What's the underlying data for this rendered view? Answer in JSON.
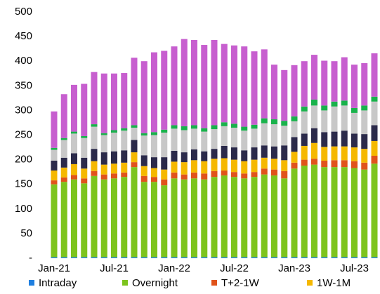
{
  "chart_data": {
    "type": "stacked-bar",
    "categories": [
      "Jan-21",
      null,
      null,
      null,
      null,
      null,
      "Jul-21",
      null,
      null,
      null,
      null,
      null,
      "Jan-22",
      null,
      null,
      null,
      null,
      null,
      "Jul-22",
      null,
      null,
      null,
      null,
      null,
      "Jan-23",
      null,
      null,
      null,
      null,
      null,
      "Jul-23",
      null,
      null
    ],
    "ylim": [
      0,
      500
    ],
    "yticks": [
      {
        "value": 0,
        "label": "-"
      },
      50,
      100,
      150,
      200,
      250,
      300,
      350,
      400,
      450,
      500
    ],
    "series": [
      {
        "name": "Intraday",
        "color": "#1f7fe0",
        "values": [
          2,
          2,
          2,
          2,
          2,
          2,
          2,
          2,
          2,
          2,
          2,
          2,
          2,
          2,
          2,
          2,
          2,
          2,
          2,
          2,
          2,
          2,
          2,
          2,
          2,
          2,
          2,
          2,
          2,
          2,
          2,
          2,
          2
        ]
      },
      {
        "name": "Overnight",
        "color": "#7dc41e",
        "values": [
          148,
          153,
          158,
          150,
          165,
          158,
          160,
          163,
          183,
          153,
          153,
          146,
          160,
          158,
          160,
          158,
          163,
          166,
          163,
          160,
          163,
          168,
          166,
          160,
          180,
          186,
          188,
          183,
          183,
          183,
          181,
          178,
          190
        ]
      },
      {
        "name": "T+2-1W",
        "color": "#e0531b",
        "values": [
          8,
          9,
          9,
          10,
          10,
          10,
          10,
          9,
          10,
          12,
          10,
          12,
          12,
          10,
          12,
          12,
          12,
          10,
          10,
          10,
          10,
          12,
          12,
          15,
          12,
          12,
          12,
          13,
          14,
          14,
          14,
          14,
          16
        ]
      },
      {
        "name": "1W-1M",
        "color": "#f5b800",
        "values": [
          20,
          20,
          22,
          20,
          20,
          20,
          20,
          20,
          20,
          20,
          18,
          20,
          22,
          25,
          25,
          25,
          25,
          25,
          25,
          25,
          25,
          22,
          22,
          22,
          22,
          28,
          32,
          28,
          28,
          28,
          28,
          28,
          30
        ]
      },
      {
        "color": "#2b2a4a",
        "values": [
          20,
          20,
          22,
          22,
          25,
          25,
          25,
          25,
          25,
          22,
          22,
          25,
          22,
          20,
          22,
          20,
          20,
          25,
          25,
          22,
          25,
          25,
          25,
          30,
          30,
          25,
          30,
          30,
          30,
          32,
          28,
          30,
          32
        ]
      },
      {
        "color": "#c8c8c8",
        "values": [
          22,
          36,
          40,
          40,
          45,
          35,
          38,
          40,
          25,
          40,
          45,
          50,
          45,
          45,
          42,
          40,
          40,
          40,
          40,
          40,
          38,
          45,
          45,
          40,
          32,
          45,
          46,
          44,
          51,
          51,
          42,
          48,
          48
        ]
      },
      {
        "color": "#19b24b",
        "values": [
          4,
          4,
          4,
          4,
          5,
          4,
          5,
          5,
          5,
          5,
          6,
          6,
          7,
          8,
          7,
          7,
          8,
          8,
          8,
          8,
          8,
          10,
          10,
          10,
          10,
          10,
          12,
          10,
          10,
          10,
          10,
          10,
          10
        ]
      },
      {
        "color": "#c75fcf",
        "values": [
          74,
          89,
          95,
          106,
          106,
          121,
          115,
          112,
          137,
          146,
          162,
          160,
          160,
          177,
          173,
          169,
          173,
          159,
          159,
          163,
          149,
          140,
          111,
          103,
          104,
          92,
          91,
          91,
          82,
          88,
          88,
          86,
          88
        ]
      }
    ]
  }
}
